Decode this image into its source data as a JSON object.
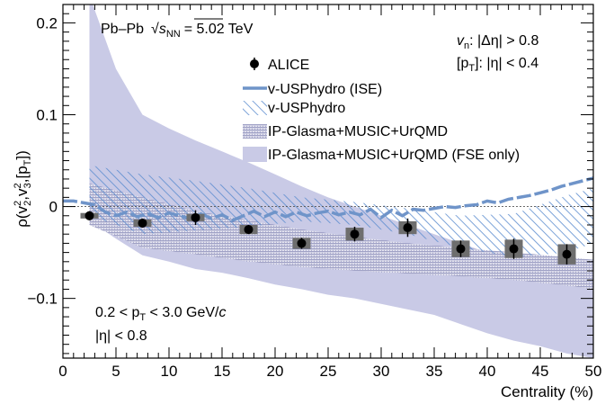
{
  "chart_data": {
    "type": "line",
    "title": "Pb–Pb √s_NN = 5.02 TeV",
    "title_parts": {
      "system": "Pb–Pb",
      "sqrt": "√",
      "s": "s",
      "sub": "NN",
      "energy": "= 5.02 TeV"
    },
    "xlabel": "Centrality (%)",
    "ylabel": "ρ(v²₂,v²₃,[p_T])",
    "ylabel_parts": {
      "rho": "ρ(v",
      "two": "2",
      "comma1": ",v",
      "three": "3",
      "comma2": ",[p",
      "T": "T",
      "close": "])"
    },
    "xlim": [
      0,
      50
    ],
    "ylim": [
      -0.165,
      0.22
    ],
    "x_ticks": [
      0,
      5,
      10,
      15,
      20,
      25,
      30,
      35,
      40,
      45,
      50
    ],
    "y_ticks": [
      -0.1,
      0,
      0.1,
      0.2
    ],
    "y_tick_labels": [
      "−0.1",
      "0",
      "0.1",
      "0.2"
    ],
    "zero_line": true,
    "grid": false,
    "legend_position": "top-center",
    "legend": [
      {
        "key": "alice",
        "label": "ALICE"
      },
      {
        "key": "ise",
        "label": "v-USPhydro (ISE)"
      },
      {
        "key": "uspydro",
        "label": "v-USPhydro"
      },
      {
        "key": "ipglasma",
        "label": "IP-Glasma+MUSIC+UrQMD"
      },
      {
        "key": "fse",
        "label": "IP-Glasma+MUSIC+UrQMD (FSE only)"
      }
    ],
    "annotations": {
      "vn_eta": "v_n: |Δη| > 0.8",
      "vn": {
        "v": "v",
        "n": "n",
        "rest": ": |Δη| > 0.8"
      },
      "pt_eta": {
        "open": "[p",
        "T": "T",
        "rest": "]: |η| < 0.4"
      },
      "pt_range": {
        "pre": "0.2 < p",
        "T": "T",
        "post": " < 3.0 GeV/",
        "c": "c"
      },
      "eta_range": "|η| < 0.8"
    },
    "colors": {
      "ise": "#6f94c9",
      "uspydro": "#5b8ccf",
      "ipglasma": "#8a8cb8",
      "fse": "#c9cae6",
      "alice": "#000000",
      "syst_box": "#6e6e6e"
    },
    "series": [
      {
        "name": "ALICE",
        "x": [
          2.5,
          7.5,
          12.5,
          17.5,
          22.5,
          27.5,
          32.5,
          37.5,
          42.5,
          47.5
        ],
        "y": [
          -0.01,
          -0.018,
          -0.012,
          -0.025,
          -0.04,
          -0.03,
          -0.023,
          -0.046,
          -0.046,
          -0.052
        ],
        "stat_err": [
          0.005,
          0.005,
          0.008,
          0.005,
          0.006,
          0.008,
          0.01,
          0.009,
          0.011,
          0.011
        ],
        "syst_err": [
          0.003,
          0.004,
          0.004,
          0.005,
          0.006,
          0.007,
          0.007,
          0.009,
          0.01,
          0.011
        ]
      },
      {
        "name": "v-USPhydro (ISE)",
        "x": [
          0,
          1,
          2,
          3,
          4,
          5,
          6,
          7,
          8,
          9,
          10,
          11,
          12,
          13,
          14,
          15,
          16,
          17,
          18,
          19,
          20,
          21,
          22,
          23,
          24,
          25,
          26,
          27,
          28,
          29,
          30,
          31,
          32,
          33,
          34,
          35,
          36,
          37,
          38,
          39,
          40,
          41,
          42,
          43,
          44,
          45,
          46,
          47,
          48,
          49,
          50
        ],
        "y": [
          0.006,
          0.006,
          0.004,
          0.002,
          -0.006,
          -0.01,
          -0.006,
          -0.011,
          -0.008,
          -0.012,
          -0.007,
          -0.01,
          -0.013,
          -0.008,
          -0.013,
          -0.009,
          -0.015,
          -0.01,
          -0.005,
          -0.011,
          -0.006,
          -0.011,
          -0.006,
          -0.01,
          -0.007,
          -0.005,
          -0.009,
          -0.006,
          -0.009,
          -0.003,
          -0.012,
          -0.004,
          -0.01,
          -0.003,
          -0.004,
          -0.002,
          0.0,
          -0.001,
          0.001,
          0.002,
          0.006,
          0.004,
          0.008,
          0.01,
          0.012,
          0.015,
          0.018,
          0.022,
          0.025,
          0.028,
          0.031
        ]
      },
      {
        "name": "v-USPhydro",
        "x": [
          2.5,
          7.5,
          12.5,
          17.5,
          22.5,
          27.5,
          32.5,
          37.5,
          42.5,
          47.5,
          50
        ],
        "upper": [
          0.045,
          0.035,
          0.028,
          0.02,
          0.01,
          0.005,
          -0.002,
          -0.01,
          -0.008,
          0.012,
          0.02
        ],
        "lower": [
          -0.01,
          -0.03,
          -0.026,
          -0.022,
          -0.016,
          -0.02,
          -0.03,
          -0.045,
          -0.055,
          -0.05,
          -0.04
        ]
      },
      {
        "name": "IP-Glasma+MUSIC+UrQMD",
        "x": [
          2.5,
          7.5,
          12.5,
          17.5,
          22.5,
          27.5,
          32.5,
          37.5,
          42.5,
          47.5,
          50
        ],
        "upper": [
          0.025,
          0.01,
          -0.005,
          -0.015,
          -0.025,
          -0.033,
          -0.04,
          -0.045,
          -0.05,
          -0.055,
          -0.058
        ],
        "lower": [
          -0.02,
          -0.045,
          -0.052,
          -0.06,
          -0.066,
          -0.07,
          -0.073,
          -0.076,
          -0.08,
          -0.086,
          -0.09
        ]
      },
      {
        "name": "IP-Glasma+MUSIC+UrQMD (FSE only)",
        "x": [
          2.5,
          5,
          7.5,
          10,
          12.5,
          15,
          17.5,
          20,
          22.5,
          25,
          27.5,
          30,
          32.5,
          35,
          37.5,
          40,
          42.5,
          45,
          47.5,
          50
        ],
        "upper": [
          0.23,
          0.15,
          0.1,
          0.085,
          0.072,
          0.06,
          0.048,
          0.035,
          0.022,
          0.01,
          0.0,
          -0.01,
          -0.02,
          -0.03,
          -0.04,
          -0.05,
          -0.055,
          -0.062,
          -0.068,
          -0.072
        ],
        "lower": [
          -0.015,
          -0.035,
          -0.053,
          -0.06,
          -0.068,
          -0.072,
          -0.078,
          -0.085,
          -0.09,
          -0.096,
          -0.1,
          -0.106,
          -0.112,
          -0.118,
          -0.128,
          -0.138,
          -0.146,
          -0.152,
          -0.16,
          -0.165
        ]
      }
    ]
  }
}
